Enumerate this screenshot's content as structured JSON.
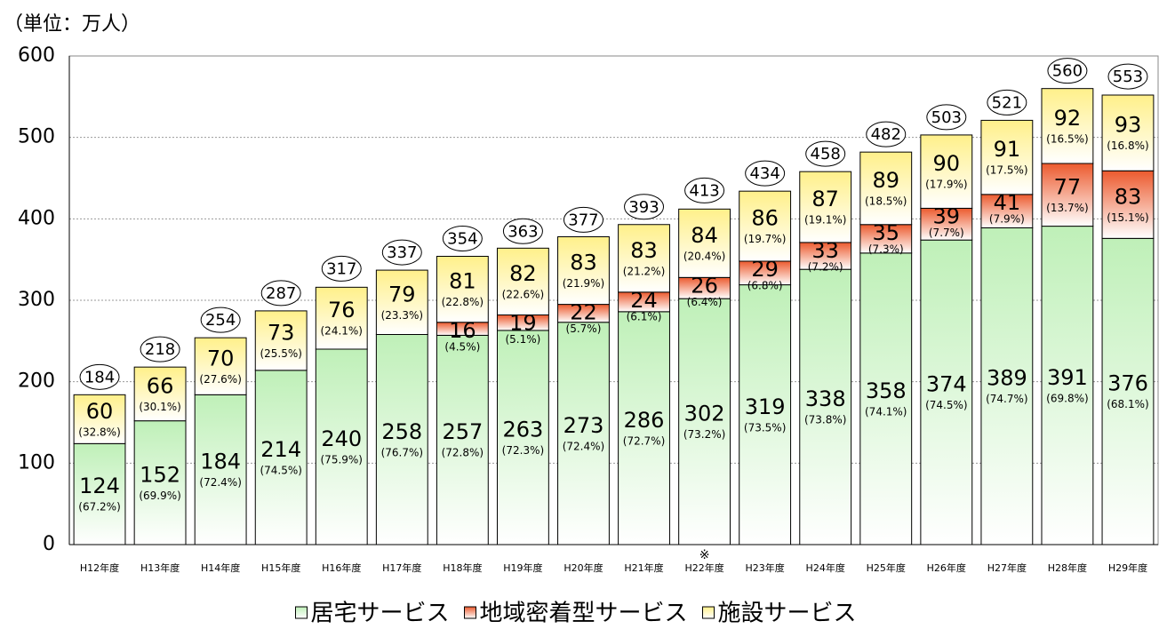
{
  "chart_data": {
    "type": "stacked_bar",
    "unit_label": "（単位：万人）",
    "note": "※",
    "categories": [
      "H12年度",
      "H13年度",
      "H14年度",
      "H15年度",
      "H16年度",
      "H17年度",
      "H18年度",
      "H19年度",
      "H20年度",
      "H21年度",
      "H22年度",
      "H23年度",
      "H24年度",
      "H25年度",
      "H26年度",
      "H27年度",
      "H28年度",
      "H29年度"
    ],
    "series": [
      {
        "name": "居宅サービス",
        "color": "#bff0b8",
        "values": [
          124,
          152,
          184,
          214,
          240,
          258,
          257,
          263,
          273,
          286,
          302,
          319,
          338,
          358,
          374,
          389,
          391,
          376
        ],
        "share_labels": [
          "(67.2%)",
          "(69.9%)",
          "(72.4%)",
          "(74.5%)",
          "(75.9%)",
          "(76.7%)",
          "(72.8%)",
          "(72.3%)",
          "(72.4%)",
          "(72.7%)",
          "(73.2%)",
          "(73.5%)",
          "(73.8%)",
          "(74.1%)",
          "(74.5%)",
          "(74.7%)",
          "(69.8%)",
          "(68.1%)"
        ]
      },
      {
        "name": "地域密着型サービス",
        "color": "#ec5a2e",
        "values": [
          null,
          null,
          null,
          null,
          null,
          null,
          16,
          19,
          22,
          24,
          26,
          29,
          33,
          35,
          39,
          41,
          77,
          83
        ],
        "share_labels": [
          null,
          null,
          null,
          null,
          null,
          null,
          "(4.5%)",
          "(5.1%)",
          "(5.7%)",
          "(6.1%)",
          "(6.4%)",
          "(6.8%)",
          "(7.2%)",
          "(7.3%)",
          "(7.7%)",
          "(7.9%)",
          "(13.7%)",
          "(15.1%)"
        ]
      },
      {
        "name": "施設サービス",
        "color": "#fff08a",
        "values": [
          60,
          66,
          70,
          73,
          76,
          79,
          81,
          82,
          83,
          83,
          84,
          86,
          87,
          89,
          90,
          91,
          92,
          93
        ],
        "share_labels": [
          "(32.8%)",
          "(30.1%)",
          "(27.6%)",
          "(25.5%)",
          "(24.1%)",
          "(23.3%)",
          "(22.8%)",
          "(22.6%)",
          "(21.9%)",
          "(21.2%)",
          "(20.4%)",
          "(19.7%)",
          "(19.1%)",
          "(18.5%)",
          "(17.9%)",
          "(17.5%)",
          "(16.5%)",
          "(16.8%)"
        ]
      }
    ],
    "totals": [
      184,
      218,
      254,
      287,
      317,
      337,
      354,
      363,
      377,
      393,
      413,
      434,
      458,
      482,
      503,
      521,
      560,
      553
    ],
    "note_category": 10,
    "ylim": [
      0,
      600
    ],
    "yticks": [
      0,
      100,
      200,
      300,
      400,
      500,
      600
    ],
    "grid": true
  }
}
